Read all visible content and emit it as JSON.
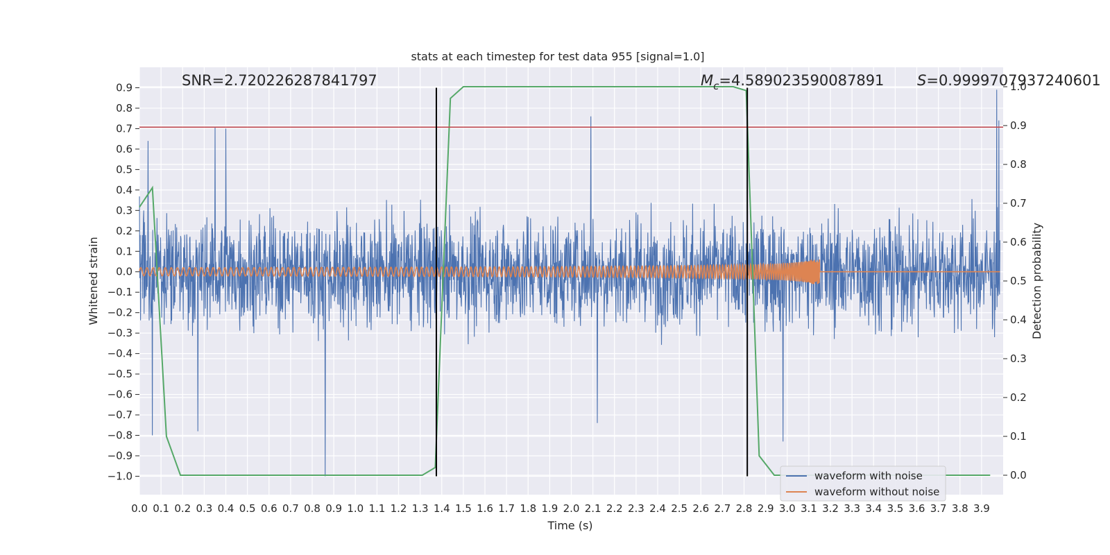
{
  "chart_data": {
    "type": "line",
    "title": "stats at each timestep for test data 955 [signal=1.0]",
    "xlabel": "Time (s)",
    "ylabel": "Whitened strain",
    "y2label": "Detection probability",
    "xlim": [
      0.0,
      4.0
    ],
    "ylim": [
      -1.09,
      1.0
    ],
    "y2lim": [
      -0.05,
      1.05
    ],
    "x_ticks": [
      "0.0",
      "0.1",
      "0.2",
      "0.3",
      "0.4",
      "0.5",
      "0.6",
      "0.7",
      "0.8",
      "0.9",
      "1.0",
      "1.1",
      "1.2",
      "1.3",
      "1.4",
      "1.5",
      "1.6",
      "1.7",
      "1.8",
      "1.9",
      "2.0",
      "2.1",
      "2.2",
      "2.3",
      "2.4",
      "2.5",
      "2.6",
      "2.7",
      "2.8",
      "2.9",
      "3.0",
      "3.1",
      "3.2",
      "3.3",
      "3.4",
      "3.5",
      "3.6",
      "3.7",
      "3.8",
      "3.9"
    ],
    "y_ticks": [
      "0.9",
      "0.8",
      "0.7",
      "0.6",
      "0.5",
      "0.4",
      "0.3",
      "0.2",
      "0.1",
      "0.0",
      "−0.1",
      "−0.2",
      "−0.3",
      "−0.4",
      "−0.5",
      "−0.6",
      "−0.7",
      "−0.8",
      "−0.9",
      "−1.0"
    ],
    "y2_ticks": [
      "1.0",
      "0.9",
      "0.8",
      "0.7",
      "0.6",
      "0.5",
      "0.4",
      "0.3",
      "0.2",
      "0.1",
      "0.0"
    ],
    "grid": true,
    "legend_position": "lower-right",
    "annotations": {
      "snr": "SNR=2.720226287841797",
      "mc_symbol": "M",
      "mc_sub": "c",
      "mc_value": "=4.589023590087891",
      "s_symbol": "S",
      "s_value": "=0.9999707937240601"
    },
    "series": [
      {
        "name": "waveform with noise",
        "color": "#4c72b0",
        "axis": "left",
        "kind": "noise",
        "amplitude_envelope": [
          0.5,
          -0.6
        ],
        "notable_extremes": [
          {
            "x": 0.04,
            "y": 0.64
          },
          {
            "x": 0.06,
            "y": -0.8
          },
          {
            "x": 0.27,
            "y": -0.78
          },
          {
            "x": 0.35,
            "y": 0.71
          },
          {
            "x": 0.4,
            "y": 0.7
          },
          {
            "x": 0.86,
            "y": -1.0
          },
          {
            "x": 2.09,
            "y": 0.76
          },
          {
            "x": 2.12,
            "y": -0.74
          },
          {
            "x": 2.98,
            "y": -0.83
          },
          {
            "x": 3.97,
            "y": 0.89
          },
          {
            "x": 3.98,
            "y": 0.74
          }
        ]
      },
      {
        "name": "waveform without noise",
        "color": "#dd8452",
        "axis": "left",
        "kind": "chirp",
        "start_amplitude": 0.02,
        "peak_amplitude": 0.06,
        "merger_time": 3.15
      },
      {
        "color": "#55a868",
        "axis": "right",
        "x": [
          0.0,
          0.06,
          0.125,
          0.19,
          0.25,
          0.31,
          0.37,
          0.44,
          0.5,
          0.56,
          0.62,
          0.69,
          0.75,
          0.81,
          0.87,
          0.94,
          1.0,
          1.06,
          1.12,
          1.19,
          1.25,
          1.31,
          1.37,
          1.44,
          1.5,
          1.56,
          1.62,
          1.69,
          1.75,
          1.81,
          1.87,
          1.94,
          2.0,
          2.06,
          2.12,
          2.19,
          2.25,
          2.31,
          2.37,
          2.44,
          2.5,
          2.56,
          2.62,
          2.69,
          2.75,
          2.81,
          2.87,
          2.94,
          3.0,
          3.06,
          3.12,
          3.19,
          3.25,
          3.31,
          3.37,
          3.44,
          3.5,
          3.56,
          3.62,
          3.69,
          3.75,
          3.81,
          3.87,
          3.94
        ],
        "y": [
          0.69,
          0.74,
          0.1,
          0.0,
          0.0,
          0.0,
          0.0,
          0.0,
          0.0,
          0.0,
          0.0,
          0.0,
          0.0,
          0.0,
          0.0,
          0.0,
          0.0,
          0.0,
          0.0,
          0.0,
          0.0,
          0.0,
          0.02,
          0.97,
          1.0,
          1.0,
          1.0,
          1.0,
          1.0,
          1.0,
          1.0,
          1.0,
          1.0,
          1.0,
          1.0,
          1.0,
          1.0,
          1.0,
          1.0,
          1.0,
          1.0,
          1.0,
          1.0,
          1.0,
          1.0,
          0.99,
          0.05,
          0.0,
          0.0,
          0.0,
          0.0,
          0.0,
          0.0,
          0.0,
          0.0,
          0.0,
          0.0,
          0.0,
          0.0,
          0.0,
          0.0,
          0.0,
          0.0,
          0.0
        ]
      }
    ],
    "hlines": [
      {
        "axis": "left",
        "y": 0.7071,
        "color": "#c44e52"
      }
    ],
    "vlines": [
      {
        "x": 1.375,
        "y_top": 0.9,
        "y_bottom": -1.0,
        "color": "#000000"
      },
      {
        "x": 2.815,
        "y_top": 0.9,
        "y_bottom": -1.0,
        "color": "#000000"
      }
    ]
  }
}
